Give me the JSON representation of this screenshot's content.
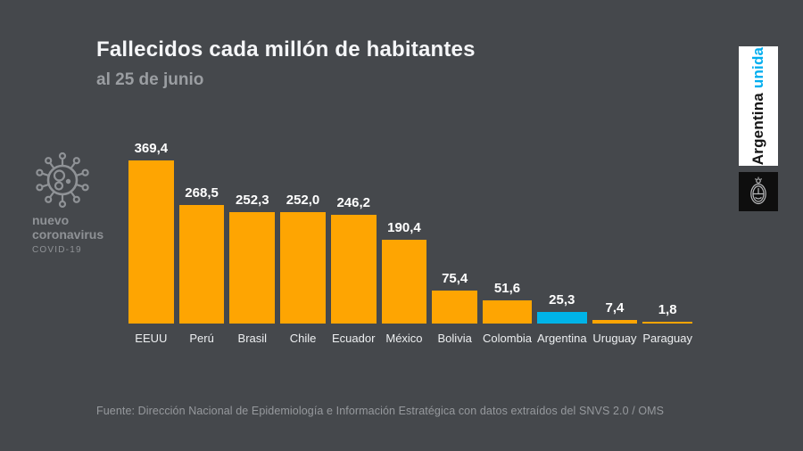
{
  "header": {
    "title": "Fallecidos cada millón de habitantes",
    "subtitle": "al 25 de junio"
  },
  "logo": {
    "line1": "nuevo",
    "line2": "coronavirus",
    "line3": "COVID-19"
  },
  "banner": {
    "word1": "Argentina",
    "word2": "unida"
  },
  "footer": {
    "source": "Fuente: Dirección Nacional de Epidemiología e Información Estratégica con datos extraídos del SNVS 2.0 / OMS"
  },
  "colors": {
    "background": "#45484c",
    "bar_default": "#fea502",
    "bar_highlight": "#00b4e8",
    "title": "#f5f6f8",
    "muted_gray": "#9b9ea2",
    "banner_accent": "#00aeef"
  },
  "chart_data": {
    "type": "bar",
    "title": "Fallecidos cada millón de habitantes",
    "subtitle": "al 25 de junio",
    "categories": [
      "EEUU",
      "Perú",
      "Brasil",
      "Chile",
      "Ecuador",
      "México",
      "Bolivia",
      "Colombia",
      "Argentina",
      "Uruguay",
      "Paraguay"
    ],
    "values": [
      369.4,
      268.5,
      252.3,
      252.0,
      246.2,
      190.4,
      75.4,
      51.6,
      25.3,
      7.4,
      1.8
    ],
    "value_labels": [
      "369,4",
      "268,5",
      "252,3",
      "252,0",
      "246,2",
      "190,4",
      "75,4",
      "51,6",
      "25,3",
      "7,4",
      "1,8"
    ],
    "highlight_category": "Argentina",
    "bar_color_default": "#fea502",
    "bar_color_highlight": "#00b4e8",
    "xlabel": "",
    "ylabel": "",
    "ylim": [
      0,
      380
    ],
    "grid": false,
    "legend": false,
    "data_labels": true
  }
}
